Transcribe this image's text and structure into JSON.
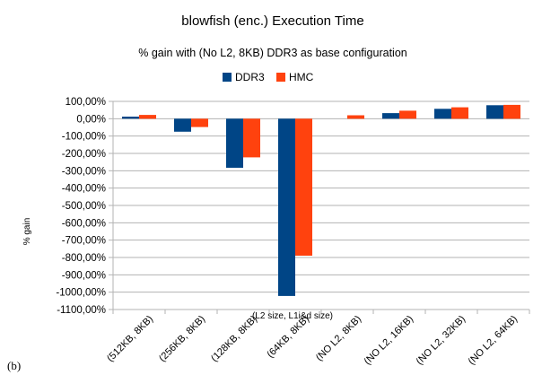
{
  "panel_label": "(b)",
  "chart_data": {
    "type": "bar",
    "title": "blowfish (enc.) Execution Time",
    "subtitle": "% gain with (No L2, 8KB) DDR3 as base configuration",
    "xlabel": "(L2 size, L1i&d size)",
    "ylabel": "% gain",
    "ylim": [
      -1100,
      100
    ],
    "ytick_step": 100,
    "ytick_labels": [
      "100,00%",
      "0,00%",
      "-100,00%",
      "-200,00%",
      "-300,00%",
      "-400,00%",
      "-500,00%",
      "-600,00%",
      "-700,00%",
      "-800,00%",
      "-900,00%",
      "-1000,00%",
      "-1100,00%"
    ],
    "grid": true,
    "legend_position": "top-center",
    "categories": [
      "(512KB, 8KB)",
      "(256KB, 8KB)",
      "(128KB, 8KB)",
      "(64KB, 8KB)",
      "(NO L2, 8KB)",
      "(NO L2, 16KB)",
      "(NO L2, 32KB)",
      "(NO L2, 64KB)"
    ],
    "series": [
      {
        "name": "DDR3",
        "color": "#004586",
        "values": [
          12,
          -75,
          -283,
          -1022,
          0,
          32,
          57,
          78
        ]
      },
      {
        "name": "HMC",
        "color": "#ff420e",
        "values": [
          22,
          -48,
          -223,
          -790,
          20,
          46,
          66,
          80
        ]
      }
    ]
  }
}
